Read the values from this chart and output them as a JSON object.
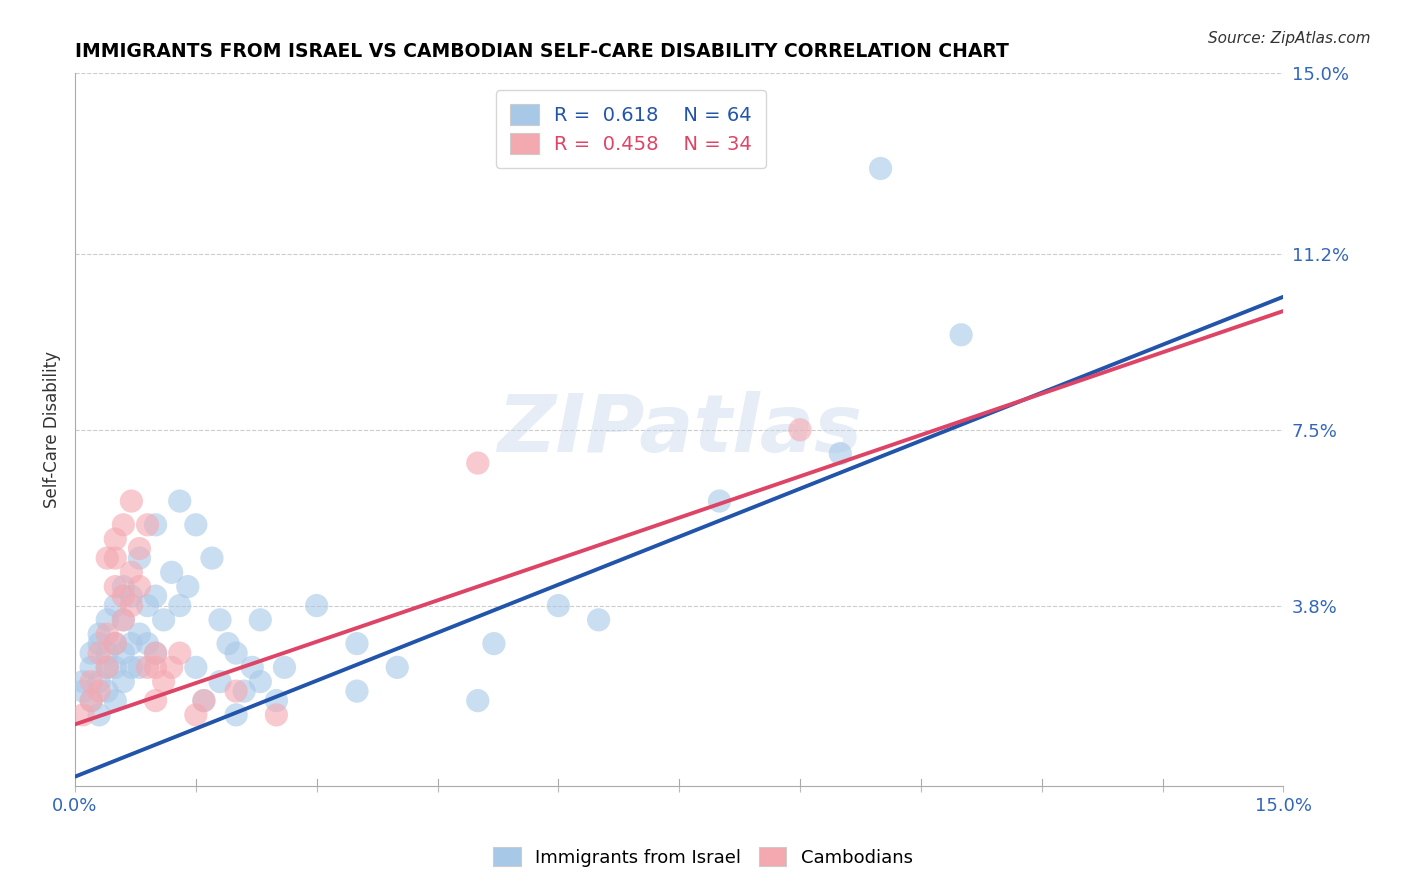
{
  "title": "IMMIGRANTS FROM ISRAEL VS CAMBODIAN SELF-CARE DISABILITY CORRELATION CHART",
  "source": "Source: ZipAtlas.com",
  "ylabel": "Self-Care Disability",
  "xlim": [
    0.0,
    0.15
  ],
  "ylim": [
    0.0,
    0.15
  ],
  "ytick_labels": [
    "",
    "3.8%",
    "7.5%",
    "11.2%",
    "15.0%"
  ],
  "ytick_vals": [
    0.0,
    0.038,
    0.075,
    0.112,
    0.15
  ],
  "r_israel": 0.618,
  "n_israel": 64,
  "r_cambodian": 0.458,
  "n_cambodian": 34,
  "blue_color": "#a8c8e8",
  "pink_color": "#f4a8b0",
  "blue_line_color": "#2255aa",
  "pink_line_color": "#dd4466",
  "watermark": "ZIPatlas",
  "israel_line": [
    0.0,
    0.002,
    0.15,
    0.103
  ],
  "cambodian_line": [
    0.0,
    0.013,
    0.15,
    0.1
  ],
  "israel_points": [
    [
      0.001,
      0.02
    ],
    [
      0.001,
      0.022
    ],
    [
      0.002,
      0.018
    ],
    [
      0.002,
      0.025
    ],
    [
      0.002,
      0.028
    ],
    [
      0.003,
      0.015
    ],
    [
      0.003,
      0.022
    ],
    [
      0.003,
      0.03
    ],
    [
      0.003,
      0.032
    ],
    [
      0.004,
      0.02
    ],
    [
      0.004,
      0.025
    ],
    [
      0.004,
      0.028
    ],
    [
      0.004,
      0.035
    ],
    [
      0.005,
      0.018
    ],
    [
      0.005,
      0.025
    ],
    [
      0.005,
      0.03
    ],
    [
      0.005,
      0.038
    ],
    [
      0.006,
      0.022
    ],
    [
      0.006,
      0.028
    ],
    [
      0.006,
      0.035
    ],
    [
      0.006,
      0.042
    ],
    [
      0.007,
      0.025
    ],
    [
      0.007,
      0.03
    ],
    [
      0.007,
      0.04
    ],
    [
      0.008,
      0.025
    ],
    [
      0.008,
      0.032
    ],
    [
      0.008,
      0.048
    ],
    [
      0.009,
      0.03
    ],
    [
      0.009,
      0.038
    ],
    [
      0.01,
      0.028
    ],
    [
      0.01,
      0.04
    ],
    [
      0.01,
      0.055
    ],
    [
      0.011,
      0.035
    ],
    [
      0.012,
      0.045
    ],
    [
      0.013,
      0.038
    ],
    [
      0.013,
      0.06
    ],
    [
      0.014,
      0.042
    ],
    [
      0.015,
      0.025
    ],
    [
      0.015,
      0.055
    ],
    [
      0.016,
      0.018
    ],
    [
      0.017,
      0.048
    ],
    [
      0.018,
      0.022
    ],
    [
      0.018,
      0.035
    ],
    [
      0.019,
      0.03
    ],
    [
      0.02,
      0.015
    ],
    [
      0.02,
      0.028
    ],
    [
      0.021,
      0.02
    ],
    [
      0.022,
      0.025
    ],
    [
      0.023,
      0.022
    ],
    [
      0.023,
      0.035
    ],
    [
      0.025,
      0.018
    ],
    [
      0.026,
      0.025
    ],
    [
      0.03,
      0.038
    ],
    [
      0.035,
      0.02
    ],
    [
      0.035,
      0.03
    ],
    [
      0.04,
      0.025
    ],
    [
      0.05,
      0.018
    ],
    [
      0.052,
      0.03
    ],
    [
      0.06,
      0.038
    ],
    [
      0.065,
      0.035
    ],
    [
      0.08,
      0.06
    ],
    [
      0.095,
      0.07
    ],
    [
      0.1,
      0.13
    ],
    [
      0.11,
      0.095
    ]
  ],
  "cambodian_points": [
    [
      0.001,
      0.015
    ],
    [
      0.002,
      0.018
    ],
    [
      0.002,
      0.022
    ],
    [
      0.003,
      0.02
    ],
    [
      0.003,
      0.028
    ],
    [
      0.004,
      0.025
    ],
    [
      0.004,
      0.032
    ],
    [
      0.004,
      0.048
    ],
    [
      0.005,
      0.03
    ],
    [
      0.005,
      0.042
    ],
    [
      0.005,
      0.048
    ],
    [
      0.005,
      0.052
    ],
    [
      0.006,
      0.035
    ],
    [
      0.006,
      0.04
    ],
    [
      0.006,
      0.055
    ],
    [
      0.007,
      0.038
    ],
    [
      0.007,
      0.045
    ],
    [
      0.007,
      0.06
    ],
    [
      0.008,
      0.042
    ],
    [
      0.008,
      0.05
    ],
    [
      0.009,
      0.025
    ],
    [
      0.009,
      0.055
    ],
    [
      0.01,
      0.018
    ],
    [
      0.01,
      0.025
    ],
    [
      0.01,
      0.028
    ],
    [
      0.011,
      0.022
    ],
    [
      0.012,
      0.025
    ],
    [
      0.013,
      0.028
    ],
    [
      0.015,
      0.015
    ],
    [
      0.016,
      0.018
    ],
    [
      0.02,
      0.02
    ],
    [
      0.025,
      0.015
    ],
    [
      0.05,
      0.068
    ],
    [
      0.09,
      0.075
    ]
  ]
}
